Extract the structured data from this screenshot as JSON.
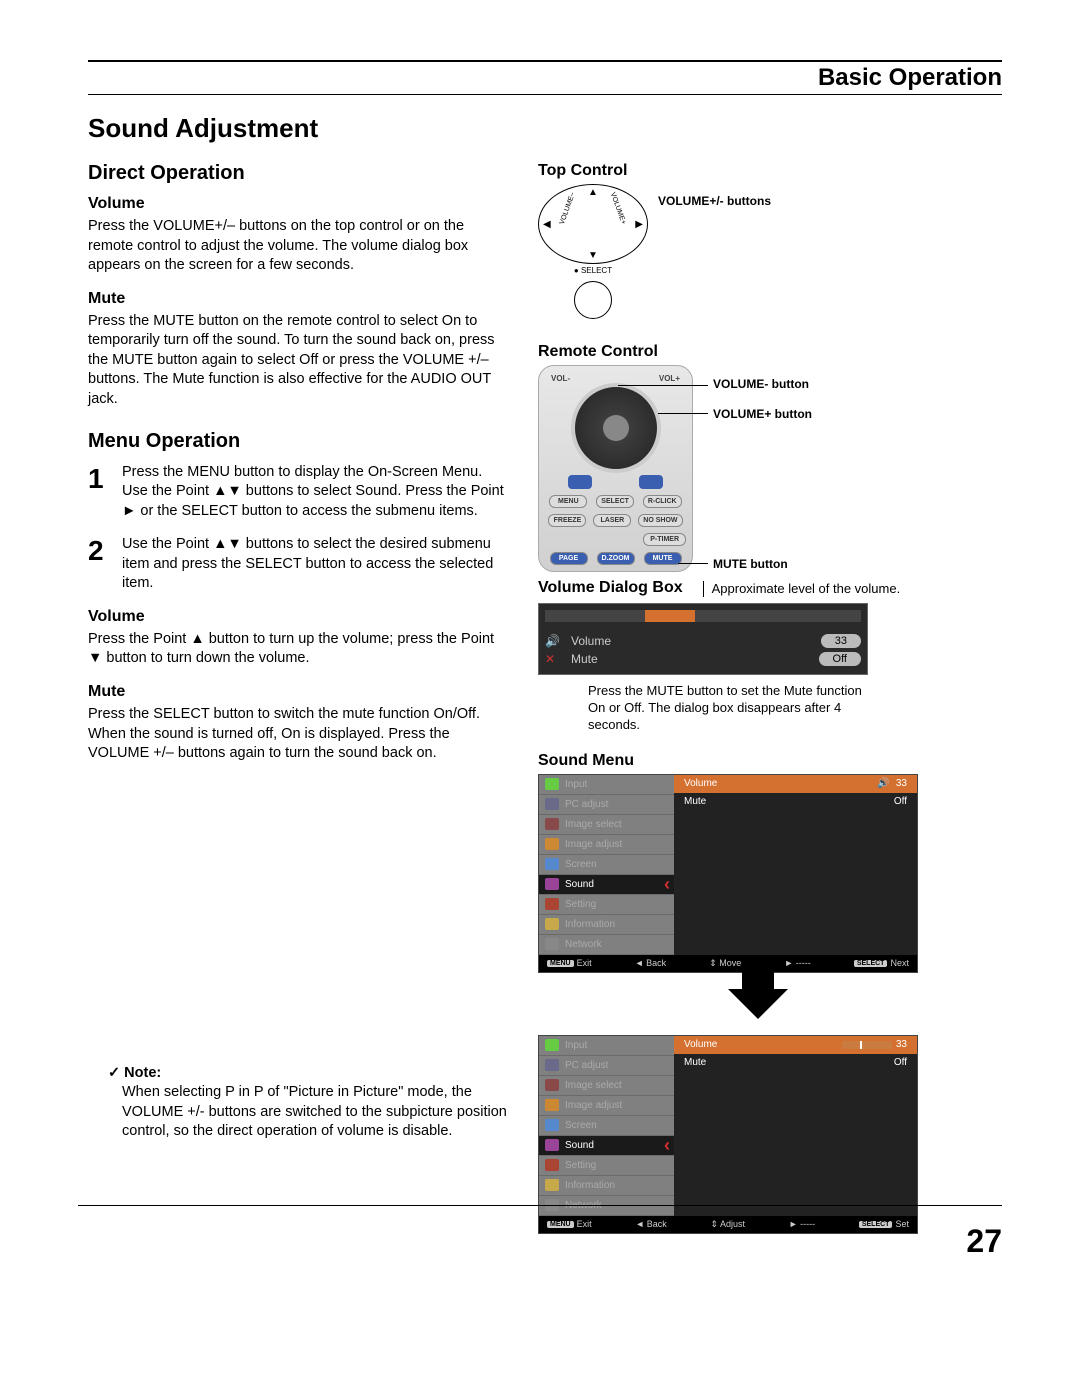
{
  "header": "Basic Operation",
  "pageTitle": "Sound Adjustment",
  "pageNumber": "27",
  "left": {
    "directOperation": {
      "heading": "Direct Operation",
      "volume": {
        "title": "Volume",
        "text": "Press the VOLUME+/– buttons on the top control or on the remote control to adjust the volume. The volume dialog box appears on the screen for a few seconds."
      },
      "mute": {
        "title": "Mute",
        "text": "Press the MUTE button on the remote control to select On to temporarily turn off the sound. To turn the sound back on, press the MUTE button again to select Off or press the VOLUME +/– buttons. The Mute function is also effective for the AUDIO OUT jack."
      }
    },
    "menuOperation": {
      "heading": "Menu Operation",
      "step1": "Press the MENU button to display the On-Screen Menu. Use the Point ▲▼ buttons to select Sound. Press the Point ► or the SELECT button to access the submenu items.",
      "step2": "Use the Point ▲▼ buttons to select the desired submenu item and press the SELECT button to access the selected item.",
      "volume": {
        "title": "Volume",
        "text": "Press the Point ▲ button to turn up the volume; press the Point ▼ button to turn down the volume."
      },
      "mute": {
        "title": "Mute",
        "text": "Press the SELECT button to switch the mute function On/Off. When the sound is turned off, On is displayed. Press the VOLUME +/– buttons again to turn the sound back on."
      }
    },
    "note": {
      "label": "Note:",
      "text": "When selecting P in P of \"Picture in Picture\" mode, the VOLUME +/- buttons are switched to the subpicture position control, so the direct operation of volume is disable."
    }
  },
  "right": {
    "topControl": {
      "heading": "Top Control",
      "caption": "VOLUME+/- buttons",
      "selectLabel": "SELECT"
    },
    "remoteControl": {
      "heading": "Remote Control",
      "volMinus": "VOLUME- button",
      "volPlus": "VOLUME+ button",
      "muteBtn": "MUTE button",
      "buttons": {
        "vol1": "VOL-",
        "vol2": "VOL+",
        "menu": "MENU",
        "select": "SELECT",
        "rclick": "R-CLICK",
        "freeze": "FREEZE",
        "laser": "LASER",
        "noshow": "NO SHOW",
        "ptimer": "P-TIMER",
        "page": "PAGE",
        "dzoom": "D.ZOOM",
        "mute": "MUTE"
      }
    },
    "volumeDialog": {
      "heading": "Volume Dialog Box",
      "approxNote": "Approximate level of the volume.",
      "rows": {
        "volumeLabel": "Volume",
        "volumeValue": "33",
        "muteLabel": "Mute",
        "muteValue": "Off"
      },
      "note": "Press the MUTE button to set the Mute function On or Off. The dialog box disappears after 4 seconds."
    },
    "soundMenu": {
      "heading": "Sound Menu",
      "navItems": [
        "Input",
        "PC adjust",
        "Image select",
        "Image adjust",
        "Screen",
        "Sound",
        "Setting",
        "Information",
        "Network"
      ],
      "navColors": [
        "#66cc44",
        "#6a6a8a",
        "#8a4a4a",
        "#cc8833",
        "#5588cc",
        "#994499",
        "#aa4433",
        "#c7a84a",
        "#888888"
      ],
      "osd1": {
        "content": {
          "volume": "Volume",
          "volumeVal": "33",
          "mute": "Mute",
          "muteVal": "Off"
        },
        "footer": {
          "k1": "MENU",
          "a1": "Exit",
          "a2": "◄ Back",
          "a3": "⇕ Move",
          "a4": "► -----",
          "k2": "SELECT",
          "a5": "Next"
        }
      },
      "osd2": {
        "content": {
          "volume": "Volume",
          "volumeVal": "33",
          "mute": "Mute",
          "muteVal": "Off"
        },
        "footer": {
          "k1": "MENU",
          "a1": "Exit",
          "a2": "◄ Back",
          "a3": "⇕ Adjust",
          "a4": "► -----",
          "k2": "SELECT",
          "a5": "Set"
        }
      }
    }
  }
}
